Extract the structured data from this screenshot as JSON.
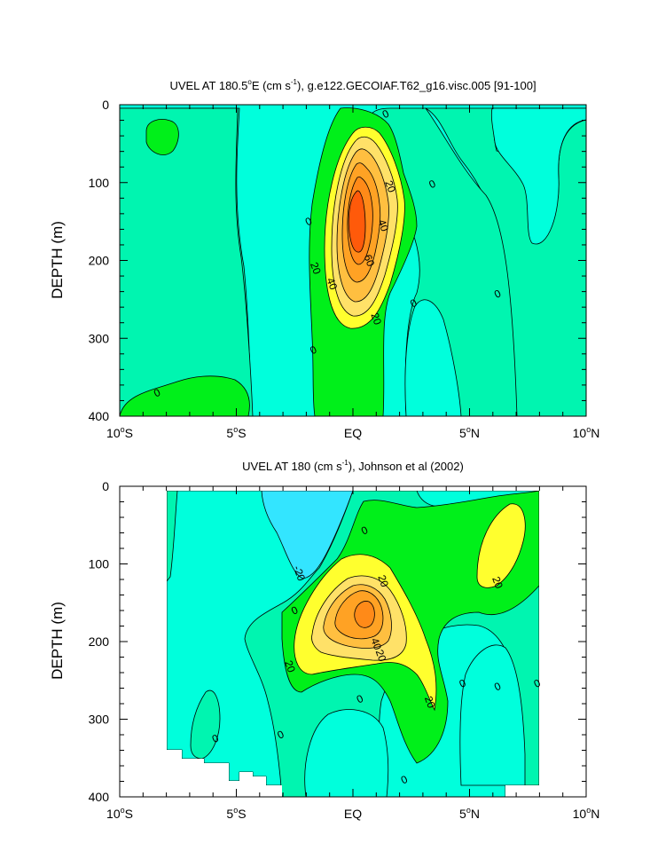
{
  "colors": {
    "level_lt_neg20": "#33e5ff",
    "level_neg20_0": "#00ffdc",
    "level_0_10": "#00f5b0",
    "level_10_20": "#00f01a",
    "level_20_30": "#ffff2e",
    "level_30_40": "#ffe168",
    "level_40_50": "#ffbf40",
    "level_50_60": "#ffa224",
    "level_60_70": "#ff8a18",
    "level_gt_70": "#ff5a0a",
    "contour_line": "#000000"
  },
  "chart_data": [
    {
      "type": "heatmap",
      "subtype": "filled-contour",
      "title": "UVEL AT 180.5°E (cm s⁻¹), g.e122.GECOIAF.T62_g16.visc.005 [91-100]",
      "title_parts": {
        "prefix": "UVEL AT 180.5",
        "sup1": "o",
        "mid": "E (cm s",
        "sup2": "-1",
        "suffix": "), g.e122.GECOIAF.T62_g16.visc.005 [91-100]"
      },
      "xlabel": "",
      "ylabel": "DEPTH (m)",
      "xlim": [
        -10,
        10
      ],
      "ylim": [
        400,
        0
      ],
      "x_ticks": [
        {
          "value": -10,
          "num": "10",
          "deg": "o",
          "dir": "S"
        },
        {
          "value": -5,
          "num": "5",
          "deg": "o",
          "dir": "S"
        },
        {
          "value": 0,
          "num": "EQ",
          "deg": "",
          "dir": ""
        },
        {
          "value": 5,
          "num": "5",
          "deg": "o",
          "dir": "N"
        },
        {
          "value": 10,
          "num": "10",
          "deg": "o",
          "dir": "N"
        }
      ],
      "y_ticks": [
        "0",
        "100",
        "200",
        "300",
        "400"
      ],
      "y_tick_values": [
        0,
        100,
        200,
        300,
        400
      ],
      "contour_levels": [
        -20,
        0,
        10,
        20,
        30,
        40,
        50,
        60,
        70
      ],
      "max_value_approx": 75,
      "max_location": {
        "lat": 0,
        "depth": 170
      },
      "contour_labels": [
        {
          "text": "0",
          "lat": 1.4,
          "depth": 12
        },
        {
          "text": "20",
          "lat": 1.6,
          "depth": 105
        },
        {
          "text": "0",
          "lat": 3.4,
          "depth": 102
        },
        {
          "text": "40",
          "lat": 1.3,
          "depth": 155
        },
        {
          "text": "0",
          "lat": -1.9,
          "depth": 150
        },
        {
          "text": "60",
          "lat": 0.7,
          "depth": 200
        },
        {
          "text": "20",
          "lat": -1.6,
          "depth": 210
        },
        {
          "text": "40",
          "lat": -0.9,
          "depth": 230
        },
        {
          "text": "0",
          "lat": 6.2,
          "depth": 243
        },
        {
          "text": "0",
          "lat": 2.6,
          "depth": 255
        },
        {
          "text": "20",
          "lat": 1.0,
          "depth": 275
        },
        {
          "text": "0",
          "lat": -1.7,
          "depth": 315
        },
        {
          "text": "0",
          "lat": -8.4,
          "depth": 370
        }
      ]
    },
    {
      "type": "heatmap",
      "subtype": "filled-contour",
      "title": "UVEL AT 180 (cm s⁻¹), Johnson et al (2002)",
      "title_parts": {
        "prefix": "UVEL AT 180 (cm s",
        "sup2": "-1",
        "suffix": "), Johnson et al (2002)"
      },
      "xlabel": "",
      "ylabel": "DEPTH (m)",
      "xlim": [
        -10,
        10
      ],
      "ylim": [
        400,
        0
      ],
      "x_ticks": [
        {
          "value": -10,
          "num": "10",
          "deg": "o",
          "dir": "S"
        },
        {
          "value": -5,
          "num": "5",
          "deg": "o",
          "dir": "S"
        },
        {
          "value": 0,
          "num": "EQ",
          "deg": "",
          "dir": ""
        },
        {
          "value": 5,
          "num": "5",
          "deg": "o",
          "dir": "N"
        },
        {
          "value": 10,
          "num": "10",
          "deg": "o",
          "dir": "N"
        }
      ],
      "y_ticks": [
        "0",
        "100",
        "200",
        "300",
        "400"
      ],
      "y_tick_values": [
        0,
        100,
        200,
        300,
        400
      ],
      "data_lat_range": [
        -8,
        8
      ],
      "contour_levels": [
        -20,
        0,
        10,
        20,
        30,
        40,
        50,
        60
      ],
      "max_value_approx": 60,
      "max_location": {
        "lat": 0.4,
        "depth": 165
      },
      "contour_labels": [
        {
          "text": "0",
          "lat": 0.5,
          "depth": 57
        },
        {
          "text": "-20",
          "lat": -2.3,
          "depth": 112
        },
        {
          "text": "20",
          "lat": 1.3,
          "depth": 122
        },
        {
          "text": "0",
          "lat": -2.5,
          "depth": 160
        },
        {
          "text": "20",
          "lat": 6.2,
          "depth": 124
        },
        {
          "text": "40",
          "lat": 1.0,
          "depth": 203
        },
        {
          "text": "20",
          "lat": 1.2,
          "depth": 218
        },
        {
          "text": "20",
          "lat": -2.7,
          "depth": 232
        },
        {
          "text": "0",
          "lat": 4.7,
          "depth": 254
        },
        {
          "text": "0",
          "lat": 6.2,
          "depth": 258
        },
        {
          "text": "0",
          "lat": 7.9,
          "depth": 254
        },
        {
          "text": "0",
          "lat": 0.3,
          "depth": 274
        },
        {
          "text": "20",
          "lat": 3.3,
          "depth": 278
        },
        {
          "text": "0",
          "lat": -3.1,
          "depth": 320
        },
        {
          "text": "0",
          "lat": -5.9,
          "depth": 325
        },
        {
          "text": "0",
          "lat": 2.2,
          "depth": 378
        }
      ]
    }
  ]
}
